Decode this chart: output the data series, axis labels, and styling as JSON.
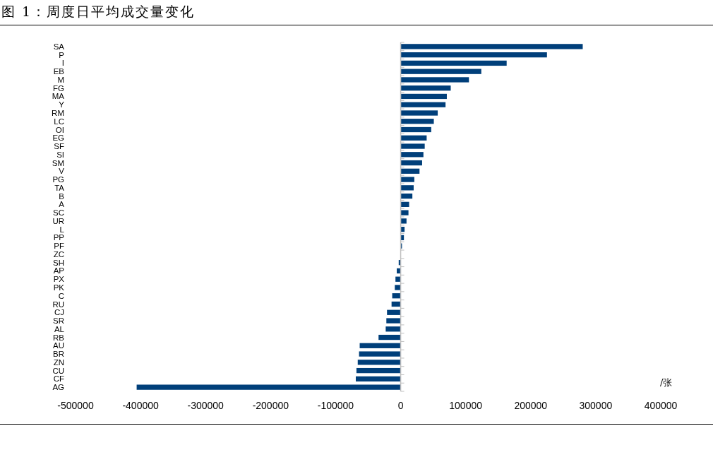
{
  "chart_data": {
    "type": "bar",
    "orientation": "horizontal",
    "title": "图 1：周度日平均成交量变化",
    "categories": [
      "SA",
      "P",
      "I",
      "EB",
      "M",
      "FG",
      "MA",
      "Y",
      "RM",
      "LC",
      "OI",
      "EG",
      "SF",
      "SI",
      "SM",
      "V",
      "PG",
      "TA",
      "B",
      "A",
      "SC",
      "UR",
      "L",
      "PP",
      "PF",
      "ZC",
      "SH",
      "AP",
      "PX",
      "PK",
      "C",
      "RU",
      "CJ",
      "SR",
      "AL",
      "RB",
      "AU",
      "BR",
      "ZN",
      "CU",
      "CF",
      "AG"
    ],
    "values": [
      280000,
      225000,
      163000,
      124000,
      105000,
      77000,
      71000,
      69000,
      57000,
      51000,
      47000,
      40000,
      37000,
      35000,
      33000,
      29000,
      21000,
      20000,
      18000,
      13000,
      12000,
      9000,
      6000,
      5000,
      2000,
      0,
      -3000,
      -6000,
      -8000,
      -9000,
      -13000,
      -14000,
      -21000,
      -22000,
      -23000,
      -34000,
      -63000,
      -64000,
      -66000,
      -68000,
      -69000,
      -406000
    ],
    "color": "#003f7a",
    "xlim": [
      -500000,
      400000
    ],
    "xticks": [
      -500000,
      -400000,
      -300000,
      -200000,
      -100000,
      0,
      100000,
      200000,
      300000,
      400000
    ],
    "annotations": [
      "/张"
    ]
  }
}
